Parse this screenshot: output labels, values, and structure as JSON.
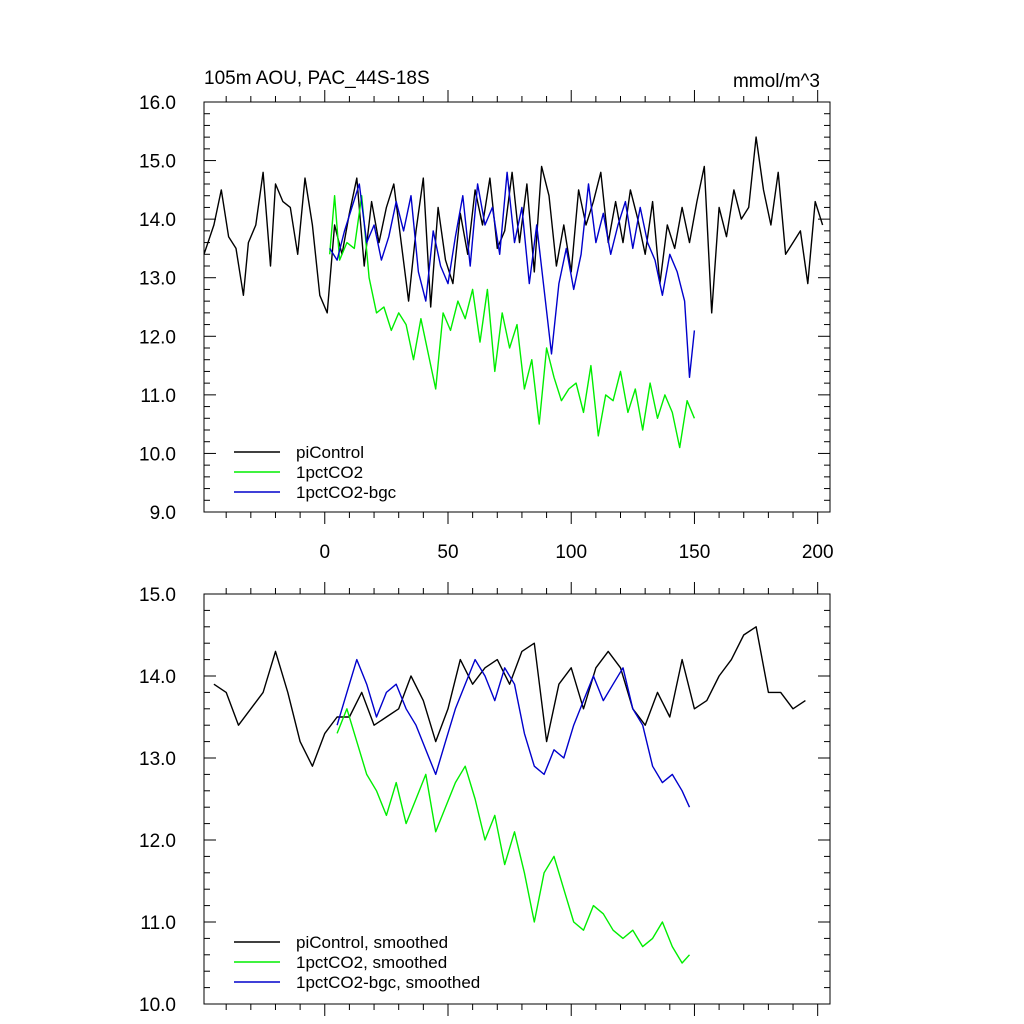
{
  "chart_data": [
    {
      "type": "line",
      "title": "105m AOU, PAC_44S-18S",
      "units": "mmol/m^3",
      "xlabel": "",
      "ylabel": "",
      "xlim": [
        -49,
        205
      ],
      "ylim": [
        9.0,
        16.0
      ],
      "x_ticks": [
        0,
        50,
        100,
        150,
        200
      ],
      "x_tick_labels": [
        "0",
        "50",
        "100",
        "150",
        "200"
      ],
      "y_ticks": [
        9.0,
        10.0,
        11.0,
        12.0,
        13.0,
        14.0,
        15.0,
        16.0
      ],
      "y_tick_labels": [
        "9.0",
        "10.0",
        "11.0",
        "12.0",
        "13.0",
        "14.0",
        "15.0",
        "16.0"
      ],
      "legend_position": "bottom-left",
      "series": [
        {
          "name": "piControl",
          "color": "#000000",
          "x": [
            -49,
            -45,
            -42,
            -39,
            -36,
            -33,
            -31,
            -28,
            -25,
            -22,
            -20,
            -17,
            -14,
            -11,
            -8,
            -5,
            -2,
            1,
            4,
            7,
            10,
            13,
            16,
            19,
            22,
            25,
            28,
            31,
            34,
            37,
            40,
            43,
            46,
            49,
            52,
            55,
            58,
            61,
            64,
            67,
            70,
            73,
            76,
            79,
            82,
            85,
            88,
            91,
            94,
            97,
            100,
            103,
            106,
            109,
            112,
            115,
            118,
            121,
            124,
            127,
            130,
            133,
            136,
            139,
            142,
            145,
            148,
            151,
            154,
            157,
            160,
            163,
            166,
            169,
            172,
            175,
            178,
            181,
            184,
            187,
            190,
            193,
            196,
            199,
            202
          ],
          "values": [
            13.4,
            13.9,
            14.5,
            13.7,
            13.5,
            12.7,
            13.6,
            13.9,
            14.8,
            13.2,
            14.6,
            14.3,
            14.2,
            13.4,
            14.7,
            13.9,
            12.7,
            12.4,
            13.9,
            13.4,
            14.1,
            14.7,
            13.2,
            14.3,
            13.6,
            14.2,
            14.6,
            13.6,
            12.6,
            13.8,
            14.7,
            12.5,
            14.2,
            13.3,
            12.9,
            14.1,
            13.4,
            14.5,
            13.9,
            14.7,
            13.5,
            13.8,
            14.8,
            13.6,
            14.6,
            13.1,
            14.9,
            14.4,
            13.2,
            13.9,
            13.1,
            14.5,
            13.9,
            14.3,
            14.8,
            13.6,
            14.3,
            13.6,
            14.5,
            14.0,
            13.4,
            14.3,
            12.9,
            13.9,
            13.5,
            14.2,
            13.6,
            14.3,
            14.9,
            12.4,
            14.2,
            13.7,
            14.5,
            14.0,
            14.2,
            15.4,
            14.5,
            13.9,
            14.8,
            13.4,
            13.6,
            13.8,
            12.9,
            14.3,
            13.9
          ]
        },
        {
          "name": "1pctCO2",
          "color": "#00ee00",
          "x": [
            2,
            4,
            6,
            9,
            12,
            15,
            18,
            21,
            24,
            27,
            30,
            33,
            36,
            39,
            42,
            45,
            48,
            51,
            54,
            57,
            60,
            63,
            66,
            69,
            72,
            75,
            78,
            81,
            84,
            87,
            90,
            93,
            96,
            99,
            102,
            105,
            108,
            111,
            114,
            117,
            120,
            123,
            126,
            129,
            132,
            135,
            138,
            141,
            144,
            147,
            150
          ],
          "values": [
            13.4,
            14.4,
            13.3,
            13.6,
            13.5,
            14.4,
            13.0,
            12.4,
            12.5,
            12.1,
            12.4,
            12.2,
            11.6,
            12.3,
            11.7,
            11.1,
            12.4,
            12.1,
            12.6,
            12.3,
            12.8,
            11.9,
            12.8,
            11.4,
            12.4,
            11.8,
            12.2,
            11.1,
            11.6,
            10.5,
            11.8,
            11.3,
            10.9,
            11.1,
            11.2,
            10.7,
            11.5,
            10.3,
            11.0,
            10.9,
            11.4,
            10.7,
            11.1,
            10.4,
            11.2,
            10.6,
            11.0,
            10.7,
            10.1,
            10.9,
            10.6
          ]
        },
        {
          "name": "1pctCO2-bgc",
          "color": "#0000cc",
          "x": [
            2,
            5,
            8,
            11,
            14,
            17,
            20,
            23,
            26,
            29,
            32,
            35,
            38,
            41,
            44,
            47,
            50,
            53,
            56,
            59,
            62,
            65,
            68,
            71,
            74,
            77,
            80,
            83,
            86,
            89,
            92,
            95,
            98,
            101,
            104,
            107,
            110,
            113,
            116,
            119,
            122,
            125,
            128,
            131,
            134,
            137,
            140,
            143,
            146,
            148,
            150
          ],
          "values": [
            13.5,
            13.3,
            13.8,
            14.2,
            14.6,
            13.6,
            13.9,
            13.3,
            13.7,
            14.3,
            13.8,
            14.4,
            13.1,
            12.6,
            13.8,
            13.2,
            12.9,
            13.7,
            14.4,
            13.2,
            14.6,
            13.9,
            14.2,
            13.4,
            14.8,
            13.6,
            14.2,
            12.9,
            13.9,
            12.8,
            11.7,
            12.9,
            13.5,
            12.8,
            13.4,
            14.6,
            13.6,
            14.1,
            13.4,
            13.9,
            14.3,
            13.5,
            14.2,
            13.6,
            13.3,
            12.7,
            13.4,
            13.1,
            12.6,
            11.3,
            12.1
          ]
        }
      ]
    },
    {
      "type": "line",
      "title": "",
      "xlabel": "",
      "ylabel": "",
      "xlim": [
        -49,
        205
      ],
      "ylim": [
        10.0,
        15.0
      ],
      "x_ticks": [
        0,
        50,
        100,
        150,
        200
      ],
      "x_tick_labels": [],
      "y_ticks": [
        10.0,
        11.0,
        12.0,
        13.0,
        14.0,
        15.0
      ],
      "y_tick_labels": [
        "10.0",
        "11.0",
        "12.0",
        "13.0",
        "14.0",
        "15.0"
      ],
      "legend_position": "bottom-left",
      "series": [
        {
          "name": "piControl, smoothed",
          "color": "#000000",
          "x": [
            -45,
            -40,
            -35,
            -30,
            -25,
            -20,
            -15,
            -10,
            -5,
            0,
            5,
            10,
            15,
            20,
            25,
            30,
            35,
            40,
            45,
            50,
            55,
            60,
            65,
            70,
            75,
            80,
            85,
            90,
            95,
            100,
            105,
            110,
            115,
            120,
            125,
            130,
            135,
            140,
            145,
            150,
            155,
            160,
            165,
            170,
            175,
            180,
            185,
            190,
            195
          ],
          "values": [
            13.9,
            13.8,
            13.4,
            13.6,
            13.8,
            14.3,
            13.8,
            13.2,
            12.9,
            13.3,
            13.5,
            13.5,
            13.8,
            13.4,
            13.5,
            13.6,
            14.0,
            13.7,
            13.2,
            13.6,
            14.2,
            13.9,
            14.1,
            14.2,
            13.9,
            14.3,
            14.4,
            13.2,
            13.9,
            14.1,
            13.6,
            14.1,
            14.3,
            14.1,
            13.6,
            13.4,
            13.8,
            13.5,
            14.2,
            13.6,
            13.7,
            14.0,
            14.2,
            14.5,
            14.6,
            13.8,
            13.8,
            13.6,
            13.7
          ]
        },
        {
          "name": "1pctCO2, smoothed",
          "color": "#00ee00",
          "x": [
            5,
            9,
            13,
            17,
            21,
            25,
            29,
            33,
            37,
            41,
            45,
            49,
            53,
            57,
            61,
            65,
            69,
            73,
            77,
            81,
            85,
            89,
            93,
            97,
            101,
            105,
            109,
            113,
            117,
            121,
            125,
            129,
            133,
            137,
            141,
            145,
            148
          ],
          "values": [
            13.3,
            13.6,
            13.2,
            12.8,
            12.6,
            12.3,
            12.7,
            12.2,
            12.5,
            12.8,
            12.1,
            12.4,
            12.7,
            12.9,
            12.5,
            12.0,
            12.3,
            11.7,
            12.1,
            11.6,
            11.0,
            11.6,
            11.8,
            11.4,
            11.0,
            10.9,
            11.2,
            11.1,
            10.9,
            10.8,
            10.9,
            10.7,
            10.8,
            11.0,
            10.7,
            10.5,
            10.6
          ]
        },
        {
          "name": "1pctCO2-bgc, smoothed",
          "color": "#0000cc",
          "x": [
            5,
            9,
            13,
            17,
            21,
            25,
            29,
            33,
            37,
            41,
            45,
            49,
            53,
            57,
            61,
            65,
            69,
            73,
            77,
            81,
            85,
            89,
            93,
            97,
            101,
            105,
            109,
            113,
            117,
            121,
            125,
            129,
            133,
            137,
            141,
            145,
            148
          ],
          "values": [
            13.4,
            13.8,
            14.2,
            13.9,
            13.5,
            13.8,
            13.9,
            13.6,
            13.4,
            13.1,
            12.8,
            13.2,
            13.6,
            13.9,
            14.2,
            14.0,
            13.7,
            14.1,
            13.9,
            13.3,
            12.9,
            12.8,
            13.1,
            13.0,
            13.4,
            13.7,
            14.0,
            13.7,
            13.9,
            14.1,
            13.6,
            13.4,
            12.9,
            12.7,
            12.8,
            12.6,
            12.4
          ]
        }
      ]
    }
  ]
}
